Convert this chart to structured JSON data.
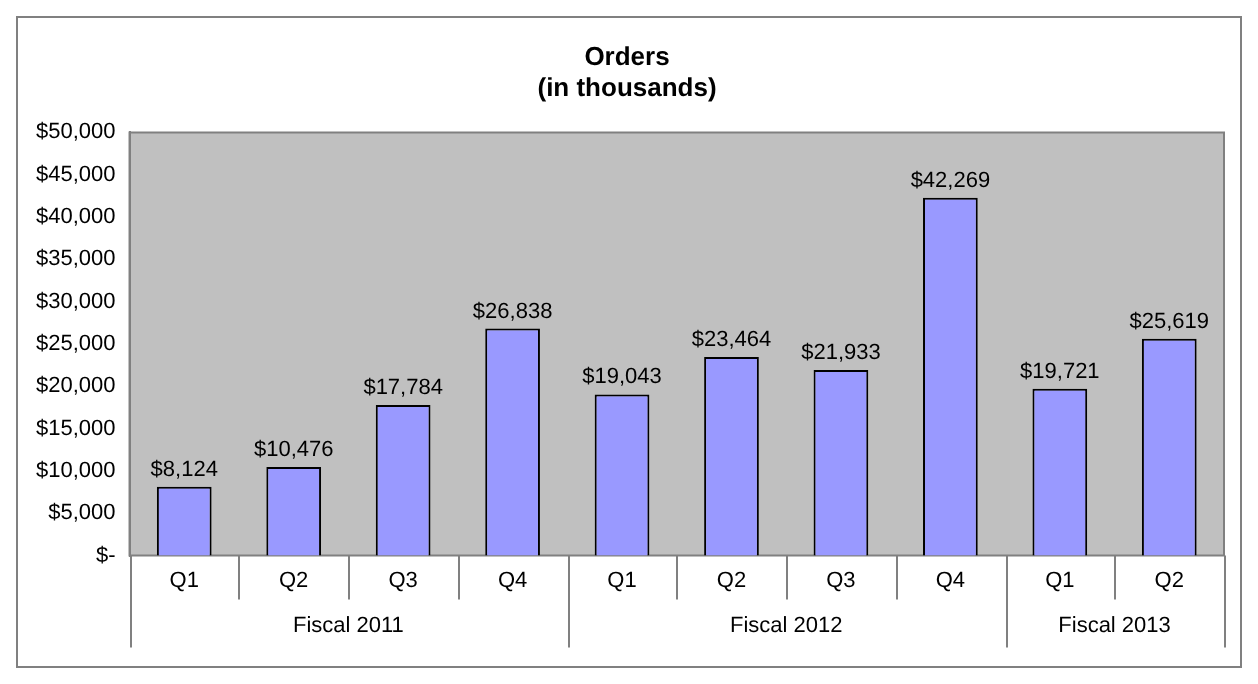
{
  "chart_data": {
    "type": "bar",
    "title": "Orders\n(in thousands)",
    "categories": [
      "Q1",
      "Q2",
      "Q3",
      "Q4",
      "Q1",
      "Q2",
      "Q3",
      "Q4",
      "Q1",
      "Q2"
    ],
    "values": [
      8124,
      10476,
      17784,
      26838,
      19043,
      23464,
      21933,
      42269,
      19721,
      25619
    ],
    "value_labels": [
      "$8,124",
      "$10,476",
      "$17,784",
      "$26,838",
      "$19,043",
      "$23,464",
      "$21,933",
      "$42,269",
      "$19,721",
      "$25,619"
    ],
    "color": "#9999ff",
    "ylim": [
      0,
      50000
    ],
    "yticks": [
      {
        "value": 0,
        "label": "$-"
      },
      {
        "value": 5000,
        "label": "$5,000"
      },
      {
        "value": 10000,
        "label": "$10,000"
      },
      {
        "value": 15000,
        "label": "$15,000"
      },
      {
        "value": 20000,
        "label": "$20,000"
      },
      {
        "value": 25000,
        "label": "$25,000"
      },
      {
        "value": 30000,
        "label": "$30,000"
      },
      {
        "value": 35000,
        "label": "$35,000"
      },
      {
        "value": 40000,
        "label": "$40,000"
      },
      {
        "value": 45000,
        "label": "$45,000"
      },
      {
        "value": 50000,
        "label": "$50,000"
      }
    ],
    "annotations": [
      "Fiscal 2011",
      "Fiscal 2012",
      "Fiscal 2013"
    ]
  }
}
